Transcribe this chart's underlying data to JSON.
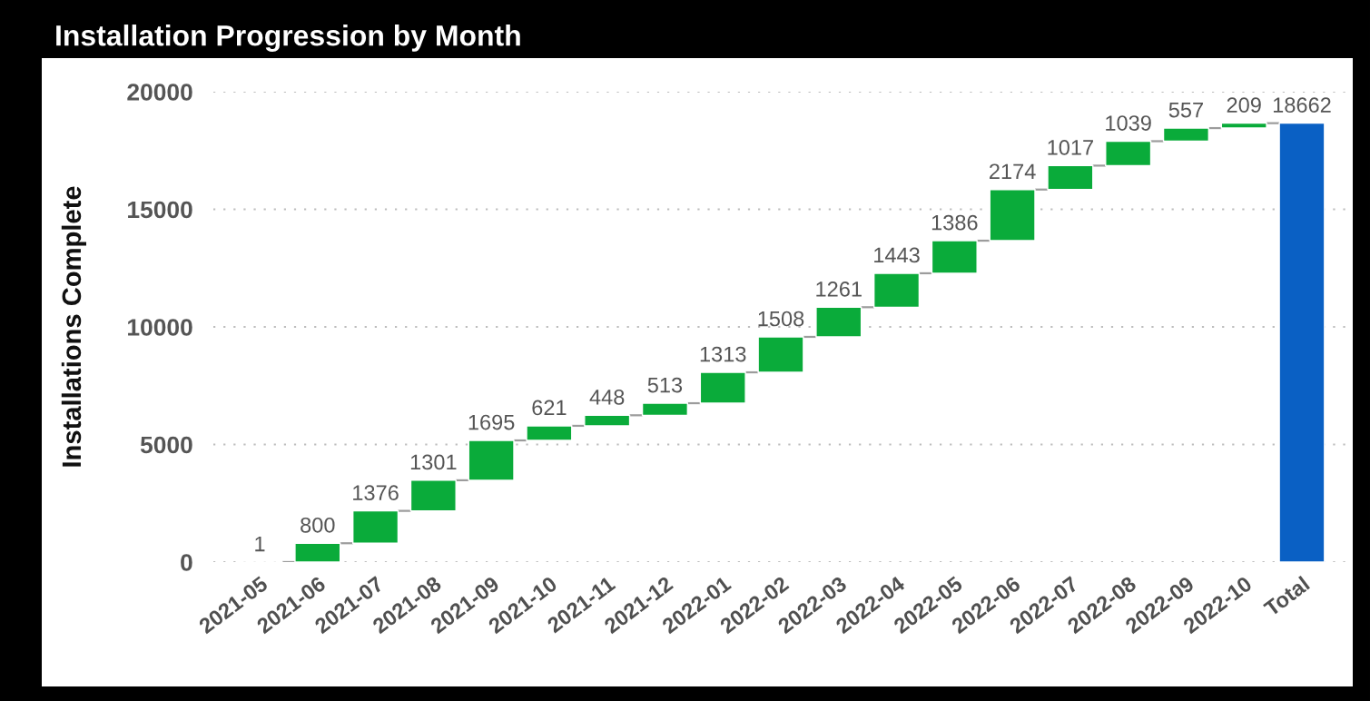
{
  "chart_data": {
    "type": "bar",
    "title": "Installation Progression by Month",
    "ylabel": "Installations Complete",
    "categories": [
      "2021-05",
      "2021-06",
      "2021-07",
      "2021-08",
      "2021-09",
      "2021-10",
      "2021-11",
      "2021-12",
      "2022-01",
      "2022-02",
      "2022-03",
      "2022-04",
      "2022-05",
      "2022-06",
      "2022-07",
      "2022-08",
      "2022-09",
      "2022-10",
      "Total"
    ],
    "values": [
      1,
      800,
      1376,
      1301,
      1695,
      621,
      448,
      513,
      1313,
      1508,
      1261,
      1443,
      1386,
      2174,
      1017,
      1039,
      557,
      209,
      18662
    ],
    "base": [
      0,
      1,
      801,
      2177,
      3478,
      5173,
      5794,
      6242,
      6755,
      8068,
      9576,
      10837,
      12280,
      13666,
      15840,
      16857,
      17896,
      18453,
      0
    ],
    "colors": [
      "#0aab3a",
      "#0aab3a",
      "#0aab3a",
      "#0aab3a",
      "#0aab3a",
      "#0aab3a",
      "#0aab3a",
      "#0aab3a",
      "#0aab3a",
      "#0aab3a",
      "#0aab3a",
      "#0aab3a",
      "#0aab3a",
      "#0aab3a",
      "#0aab3a",
      "#0aab3a",
      "#0aab3a",
      "#0aab3a",
      "#0a60c4"
    ],
    "ylim": [
      0,
      20000
    ],
    "yticks": [
      0,
      5000,
      10000,
      15000,
      20000
    ],
    "grid": "y",
    "data_labels": true
  }
}
